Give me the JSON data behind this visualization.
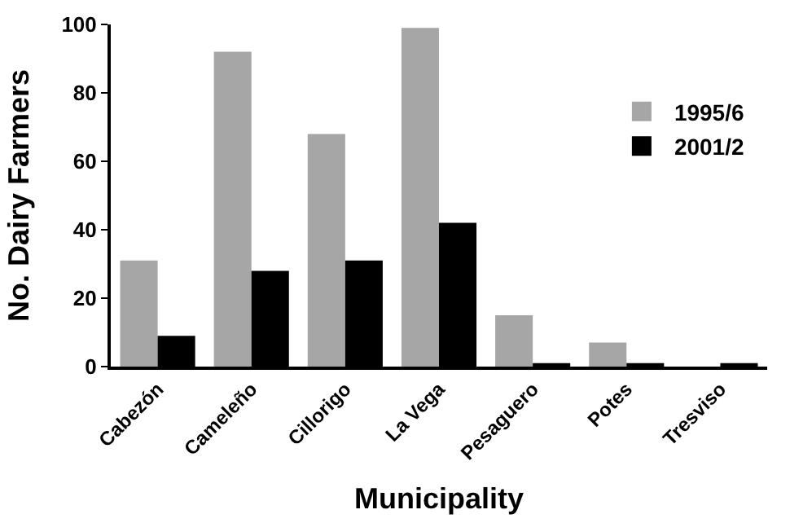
{
  "chart_data": {
    "type": "bar",
    "xlabel": "Municipality",
    "ylabel": "No. Dairy Farmers",
    "categories": [
      "Cabezón",
      "Cameleño",
      "Cillorigo",
      "La Vega",
      "Pesaguero",
      "Potes",
      "Tresviso"
    ],
    "series": [
      {
        "name": "1995/6",
        "color": "#a6a6a6",
        "values": [
          31,
          92,
          68,
          99,
          15,
          7,
          0
        ]
      },
      {
        "name": "2001/2",
        "color": "#000000",
        "values": [
          9,
          28,
          31,
          42,
          1,
          1,
          1
        ]
      }
    ],
    "ylim": [
      0,
      100
    ],
    "yticks": [
      0,
      20,
      40,
      60,
      80,
      100
    ],
    "legend": "top right"
  }
}
